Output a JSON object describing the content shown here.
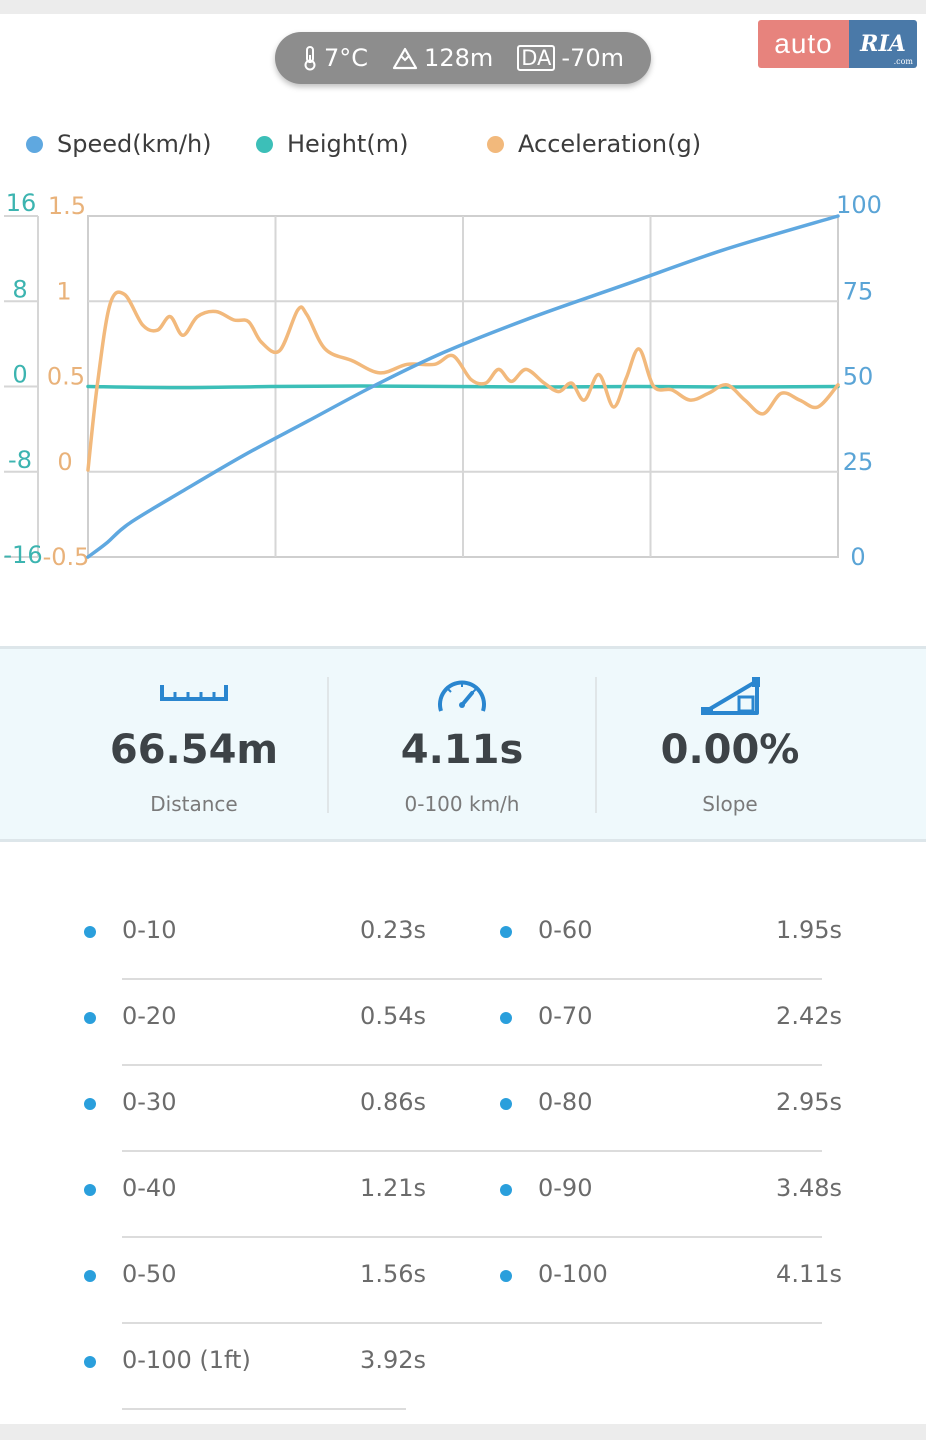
{
  "header": {
    "temperature": "7°C",
    "altitude": "128m",
    "da_label": "DA",
    "density_altitude": "-70m",
    "icons": [
      "thermometer-icon",
      "mountain-icon"
    ]
  },
  "logo": {
    "left": "auto",
    "right": "RIA",
    "suffix": ".com",
    "colors": {
      "left": "#e7837d",
      "right": "#4a79a8"
    }
  },
  "legend": [
    {
      "label": "Speed(km/h)",
      "color": "#5fa8e0"
    },
    {
      "label": "Height(m)",
      "color": "#3cbfb8"
    },
    {
      "label": "Acceleration(g)",
      "color": "#f2b97c"
    }
  ],
  "chart_data": {
    "type": "line",
    "height_axis": {
      "ticks": [
        "16",
        "8",
        "0",
        "-8",
        "-16"
      ],
      "range": [
        -16,
        16
      ],
      "color": "#3cb4b0"
    },
    "accel_axis": {
      "ticks": [
        "1.5",
        "1",
        "0.5",
        "0",
        "-0.5"
      ],
      "range": [
        -0.5,
        1.5
      ],
      "color": "#e9b27a"
    },
    "speed_axis": {
      "ticks": [
        "100",
        "75",
        "50",
        "25",
        "0"
      ],
      "range": [
        0,
        100
      ],
      "color": "#5aa4d6"
    },
    "grid": true,
    "x_range": [
      0,
      4.11
    ],
    "series": [
      {
        "name": "Speed(km/h)",
        "axis": "speed",
        "color": "#5fa8e0",
        "x": [
          0,
          0.1,
          0.23,
          0.54,
          0.86,
          1.21,
          1.56,
          1.95,
          2.42,
          2.95,
          3.48,
          4.11
        ],
        "values": [
          0,
          4,
          10,
          20,
          30,
          40,
          50,
          60,
          70,
          80,
          90,
          100
        ]
      },
      {
        "name": "Height(m)",
        "axis": "height",
        "color": "#3cbfb8",
        "x": [
          0,
          0.5,
          1.0,
          1.5,
          2.0,
          2.5,
          3.0,
          3.5,
          4.11
        ],
        "values": [
          0,
          -0.1,
          0,
          0.05,
          0,
          -0.05,
          0,
          -0.05,
          0
        ]
      },
      {
        "name": "Acceleration(g)",
        "axis": "accel",
        "color": "#f2b97c",
        "x": [
          0,
          0.05,
          0.12,
          0.2,
          0.3,
          0.38,
          0.45,
          0.52,
          0.6,
          0.7,
          0.8,
          0.88,
          0.95,
          1.05,
          1.15,
          1.2,
          1.3,
          1.45,
          1.6,
          1.75,
          1.9,
          2.0,
          2.1,
          2.18,
          2.25,
          2.32,
          2.4,
          2.5,
          2.58,
          2.65,
          2.72,
          2.8,
          2.88,
          2.95,
          3.02,
          3.1,
          3.2,
          3.3,
          3.4,
          3.5,
          3.6,
          3.7,
          3.8,
          3.9,
          4.0,
          4.11
        ],
        "values": [
          0.01,
          0.5,
          0.98,
          1.04,
          0.86,
          0.83,
          0.91,
          0.8,
          0.91,
          0.94,
          0.89,
          0.88,
          0.76,
          0.71,
          0.95,
          0.92,
          0.72,
          0.65,
          0.58,
          0.63,
          0.63,
          0.68,
          0.54,
          0.52,
          0.6,
          0.53,
          0.6,
          0.52,
          0.47,
          0.52,
          0.42,
          0.57,
          0.38,
          0.55,
          0.72,
          0.5,
          0.48,
          0.42,
          0.46,
          0.51,
          0.42,
          0.34,
          0.46,
          0.42,
          0.38,
          0.51
        ]
      }
    ]
  },
  "stats": [
    {
      "value": "66.54m",
      "label": "Distance",
      "icon": "ruler-icon"
    },
    {
      "value": "4.11s",
      "label": "0-100 km/h",
      "icon": "speedometer-icon"
    },
    {
      "value": "0.00%",
      "label": "Slope",
      "icon": "slope-icon"
    }
  ],
  "splits_left": [
    {
      "label": "0-10",
      "value": "0.23s"
    },
    {
      "label": "0-20",
      "value": "0.54s"
    },
    {
      "label": "0-30",
      "value": "0.86s"
    },
    {
      "label": "0-40",
      "value": "1.21s"
    },
    {
      "label": "0-50",
      "value": "1.56s"
    },
    {
      "label": "0-100 (1ft)",
      "value": "3.92s"
    }
  ],
  "splits_right": [
    {
      "label": "0-60",
      "value": "1.95s"
    },
    {
      "label": "0-70",
      "value": "2.42s"
    },
    {
      "label": "0-80",
      "value": "2.95s"
    },
    {
      "label": "0-90",
      "value": "3.48s"
    },
    {
      "label": "0-100",
      "value": "4.11s"
    }
  ],
  "colors": {
    "bullet": "#2a9fdc",
    "stats_bg": "#eff9fc",
    "pill_bg": "#8d8d8d"
  }
}
